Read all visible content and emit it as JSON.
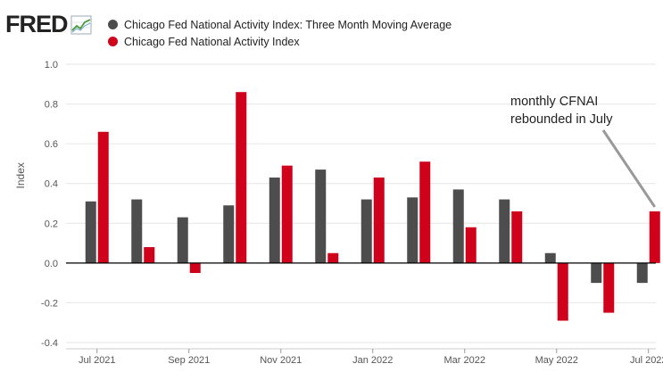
{
  "logo": {
    "text": "FRED",
    "icon": "chart-line-icon"
  },
  "legend": [
    {
      "label": "Chicago Fed National Activity Index: Three Month Moving Average",
      "color": "#4d4d4d"
    },
    {
      "label": "Chicago Fed National Activity Index",
      "color": "#d0021b"
    }
  ],
  "chart_data": {
    "type": "bar",
    "ylabel": "Index",
    "ylim": [
      -0.4,
      1.0
    ],
    "yticks": [
      "1.0",
      "0.8",
      "0.6",
      "0.4",
      "0.2",
      "0.0",
      "-0.2",
      "-0.4"
    ],
    "ytick_values": [
      1.0,
      0.8,
      0.6,
      0.4,
      0.2,
      0.0,
      -0.2,
      -0.4
    ],
    "categories": [
      "Jul 2021",
      "Aug 2021",
      "Sep 2021",
      "Oct 2021",
      "Nov 2021",
      "Dec 2021",
      "Jan 2022",
      "Feb 2022",
      "Mar 2022",
      "Apr 2022",
      "May 2022",
      "Jun 2022",
      "Jul 2022"
    ],
    "xtick_labels": [
      "Jul 2021",
      "Sep 2021",
      "Nov 2021",
      "Jan 2022",
      "Mar 2022",
      "May 2022",
      "Jul 2022"
    ],
    "xtick_indices": [
      0,
      2,
      4,
      6,
      8,
      10,
      12
    ],
    "series": [
      {
        "name": "Chicago Fed National Activity Index: Three Month Moving Average",
        "color": "#4d4d4d",
        "values": [
          0.31,
          0.32,
          0.23,
          0.29,
          0.43,
          0.47,
          0.32,
          0.33,
          0.37,
          0.32,
          0.05,
          -0.1,
          -0.1
        ]
      },
      {
        "name": "Chicago Fed National Activity Index",
        "color": "#d0021b",
        "values": [
          0.66,
          0.08,
          -0.05,
          0.86,
          0.49,
          0.05,
          0.43,
          0.51,
          0.18,
          0.26,
          -0.29,
          -0.25,
          0.26
        ]
      }
    ],
    "grid": true,
    "legend_position": "top-left",
    "annotation": {
      "lines": [
        "monthly CFNAI",
        "rebounded in July"
      ],
      "target_index": 12,
      "target_series": 1
    }
  }
}
